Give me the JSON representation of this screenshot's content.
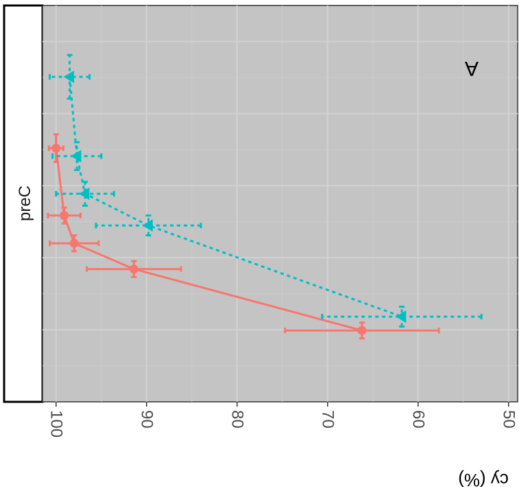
{
  "chart_data": {
    "type": "scatter",
    "facet_label": "preC",
    "panel_tag": "A",
    "axis_title": "cy (%)",
    "axis_ticks": [
      100,
      90,
      80,
      70,
      60,
      50
    ],
    "axis_range": [
      101.5,
      49
    ],
    "grid": true,
    "series": [
      {
        "color": "#f8766d",
        "line": "solid",
        "marker": "circle",
        "points": [
          {
            "x": 100.0,
            "y": 0.64,
            "xerr": 0.8,
            "yerr": 0.035
          },
          {
            "x": 99.1,
            "y": 0.47,
            "xerr": 1.8,
            "yerr": 0.02
          },
          {
            "x": 98.0,
            "y": 0.4,
            "xerr": 2.7,
            "yerr": 0.02
          },
          {
            "x": 91.4,
            "y": 0.335,
            "xerr": 5.2,
            "yerr": 0.02
          },
          {
            "x": 66.2,
            "y": 0.18,
            "xerr": 8.5,
            "yerr": 0.02
          }
        ]
      },
      {
        "color": "#00bfc4",
        "line": "dashed",
        "marker": "triangle",
        "points": [
          {
            "x": 98.5,
            "y": 0.82,
            "xerr": 2.2,
            "yerr": 0.055
          },
          {
            "x": 97.7,
            "y": 0.62,
            "xerr": 2.7,
            "yerr": 0.035
          },
          {
            "x": 96.8,
            "y": 0.525,
            "xerr": 3.2,
            "yerr": 0.03
          },
          {
            "x": 89.8,
            "y": 0.445,
            "xerr": 5.8,
            "yerr": 0.025
          },
          {
            "x": 61.8,
            "y": 0.215,
            "xerr": 8.8,
            "yerr": 0.025
          }
        ]
      }
    ]
  }
}
